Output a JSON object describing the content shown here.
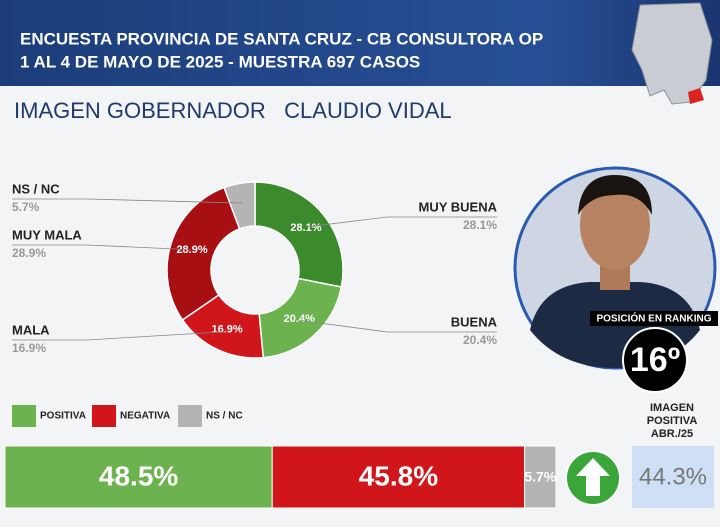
{
  "header": {
    "lines": [
      "ENCUESTA PROVINCIA DE SANTA CRUZ - CB CONSULTORA OP",
      "1 AL 4 DE MAYO DE 2025 - MUESTRA 697 CASOS"
    ]
  },
  "chart_data": [
    {
      "type": "donut",
      "title": "IMAGEN GOBERNADOR   CLAUDIO VIDAL",
      "categories": [
        "MUY BUENA",
        "BUENA",
        "MALA",
        "MUY MALA",
        "NS / NC"
      ],
      "values": [
        28.1,
        20.4,
        16.9,
        28.9,
        5.7
      ],
      "value_labels": [
        "28.1%",
        "20.4%",
        "16.9%",
        "28.9%",
        "5.7%"
      ],
      "colors": [
        "#3b8a2c",
        "#6cb24f",
        "#d1161b",
        "#a80f12",
        "#b4b4b4"
      ]
    },
    {
      "type": "stacked-bar",
      "series": [
        {
          "name": "POSITIVA",
          "color": "#6cb24f",
          "values": [
            48.5
          ],
          "value_labels": [
            "48.5%"
          ]
        },
        {
          "name": "NEGATIVA",
          "color": "#d1161b",
          "values": [
            45.8
          ],
          "value_labels": [
            "45.8%"
          ]
        },
        {
          "name": "NS / NC",
          "color": "#b4b4b4",
          "values": [
            5.7
          ],
          "value_labels": [
            "5.7%"
          ]
        }
      ]
    }
  ],
  "ranking": {
    "label": "POSICIÓN EN RANKING",
    "value": "16º"
  },
  "previous": {
    "title": [
      "IMAGEN",
      "POSITIVA",
      "ABR./25"
    ],
    "value": "44.3%"
  }
}
